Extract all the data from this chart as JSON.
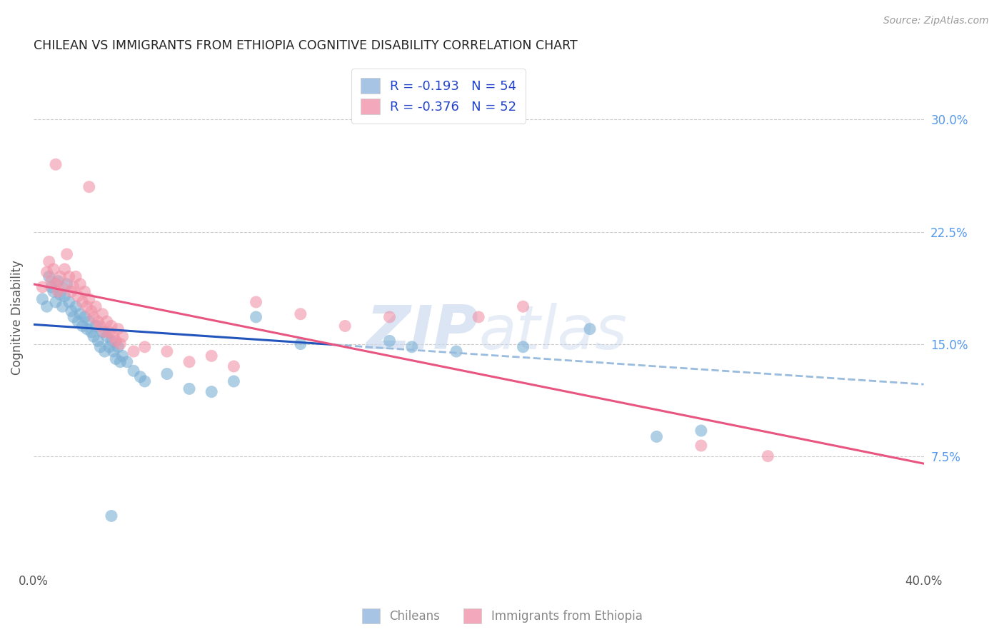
{
  "title": "CHILEAN VS IMMIGRANTS FROM ETHIOPIA COGNITIVE DISABILITY CORRELATION CHART",
  "source": "Source: ZipAtlas.com",
  "ylabel": "Cognitive Disability",
  "right_yticks": [
    "7.5%",
    "15.0%",
    "22.5%",
    "30.0%"
  ],
  "right_ytick_vals": [
    0.075,
    0.15,
    0.225,
    0.3
  ],
  "xlim": [
    0.0,
    0.4
  ],
  "ylim": [
    0.0,
    0.335
  ],
  "legend_entries": [
    {
      "label": "R = -0.193   N = 54",
      "color": "#a8c4e5"
    },
    {
      "label": "R = -0.376   N = 52",
      "color": "#f4a8bc"
    }
  ],
  "bottom_legend": [
    {
      "label": "Chileans",
      "color": "#a8c4e5"
    },
    {
      "label": "Immigrants from Ethiopia",
      "color": "#f4a8bc"
    }
  ],
  "chilean_color": "#7bafd4",
  "ethiopia_color": "#f093a8",
  "chilean_line_color": "#2255bb",
  "ethiopia_line_color": "#e85580",
  "dashed_line_color": "#99bbdd",
  "watermark_zip": "ZIP",
  "watermark_atlas": "atlas",
  "chilean_points": [
    [
      0.004,
      0.18
    ],
    [
      0.006,
      0.175
    ],
    [
      0.007,
      0.195
    ],
    [
      0.008,
      0.188
    ],
    [
      0.009,
      0.185
    ],
    [
      0.01,
      0.178
    ],
    [
      0.011,
      0.192
    ],
    [
      0.012,
      0.183
    ],
    [
      0.013,
      0.175
    ],
    [
      0.014,
      0.182
    ],
    [
      0.015,
      0.19
    ],
    [
      0.016,
      0.178
    ],
    [
      0.017,
      0.172
    ],
    [
      0.018,
      0.168
    ],
    [
      0.019,
      0.175
    ],
    [
      0.02,
      0.165
    ],
    [
      0.021,
      0.17
    ],
    [
      0.022,
      0.162
    ],
    [
      0.023,
      0.168
    ],
    [
      0.024,
      0.16
    ],
    [
      0.025,
      0.165
    ],
    [
      0.026,
      0.158
    ],
    [
      0.027,
      0.155
    ],
    [
      0.028,
      0.162
    ],
    [
      0.029,
      0.152
    ],
    [
      0.03,
      0.148
    ],
    [
      0.031,
      0.158
    ],
    [
      0.032,
      0.145
    ],
    [
      0.033,
      0.155
    ],
    [
      0.034,
      0.148
    ],
    [
      0.035,
      0.152
    ],
    [
      0.036,
      0.145
    ],
    [
      0.037,
      0.14
    ],
    [
      0.038,
      0.148
    ],
    [
      0.039,
      0.138
    ],
    [
      0.04,
      0.142
    ],
    [
      0.042,
      0.138
    ],
    [
      0.045,
      0.132
    ],
    [
      0.048,
      0.128
    ],
    [
      0.05,
      0.125
    ],
    [
      0.06,
      0.13
    ],
    [
      0.07,
      0.12
    ],
    [
      0.08,
      0.118
    ],
    [
      0.09,
      0.125
    ],
    [
      0.1,
      0.168
    ],
    [
      0.12,
      0.15
    ],
    [
      0.16,
      0.152
    ],
    [
      0.17,
      0.148
    ],
    [
      0.19,
      0.145
    ],
    [
      0.22,
      0.148
    ],
    [
      0.25,
      0.16
    ],
    [
      0.28,
      0.088
    ],
    [
      0.3,
      0.092
    ],
    [
      0.035,
      0.035
    ]
  ],
  "ethiopia_points": [
    [
      0.004,
      0.188
    ],
    [
      0.006,
      0.198
    ],
    [
      0.007,
      0.205
    ],
    [
      0.008,
      0.192
    ],
    [
      0.009,
      0.2
    ],
    [
      0.01,
      0.19
    ],
    [
      0.011,
      0.185
    ],
    [
      0.012,
      0.195
    ],
    [
      0.013,
      0.188
    ],
    [
      0.014,
      0.2
    ],
    [
      0.015,
      0.21
    ],
    [
      0.016,
      0.195
    ],
    [
      0.017,
      0.185
    ],
    [
      0.018,
      0.188
    ],
    [
      0.019,
      0.195
    ],
    [
      0.02,
      0.182
    ],
    [
      0.021,
      0.19
    ],
    [
      0.022,
      0.178
    ],
    [
      0.023,
      0.185
    ],
    [
      0.024,
      0.175
    ],
    [
      0.025,
      0.18
    ],
    [
      0.026,
      0.172
    ],
    [
      0.027,
      0.168
    ],
    [
      0.028,
      0.175
    ],
    [
      0.029,
      0.165
    ],
    [
      0.03,
      0.162
    ],
    [
      0.031,
      0.17
    ],
    [
      0.032,
      0.158
    ],
    [
      0.033,
      0.165
    ],
    [
      0.034,
      0.158
    ],
    [
      0.035,
      0.162
    ],
    [
      0.036,
      0.155
    ],
    [
      0.037,
      0.152
    ],
    [
      0.038,
      0.16
    ],
    [
      0.039,
      0.15
    ],
    [
      0.04,
      0.155
    ],
    [
      0.045,
      0.145
    ],
    [
      0.05,
      0.148
    ],
    [
      0.06,
      0.145
    ],
    [
      0.07,
      0.138
    ],
    [
      0.08,
      0.142
    ],
    [
      0.09,
      0.135
    ],
    [
      0.01,
      0.27
    ],
    [
      0.025,
      0.255
    ],
    [
      0.1,
      0.178
    ],
    [
      0.12,
      0.17
    ],
    [
      0.14,
      0.162
    ],
    [
      0.16,
      0.168
    ],
    [
      0.2,
      0.168
    ],
    [
      0.22,
      0.175
    ],
    [
      0.3,
      0.082
    ],
    [
      0.33,
      0.075
    ]
  ]
}
